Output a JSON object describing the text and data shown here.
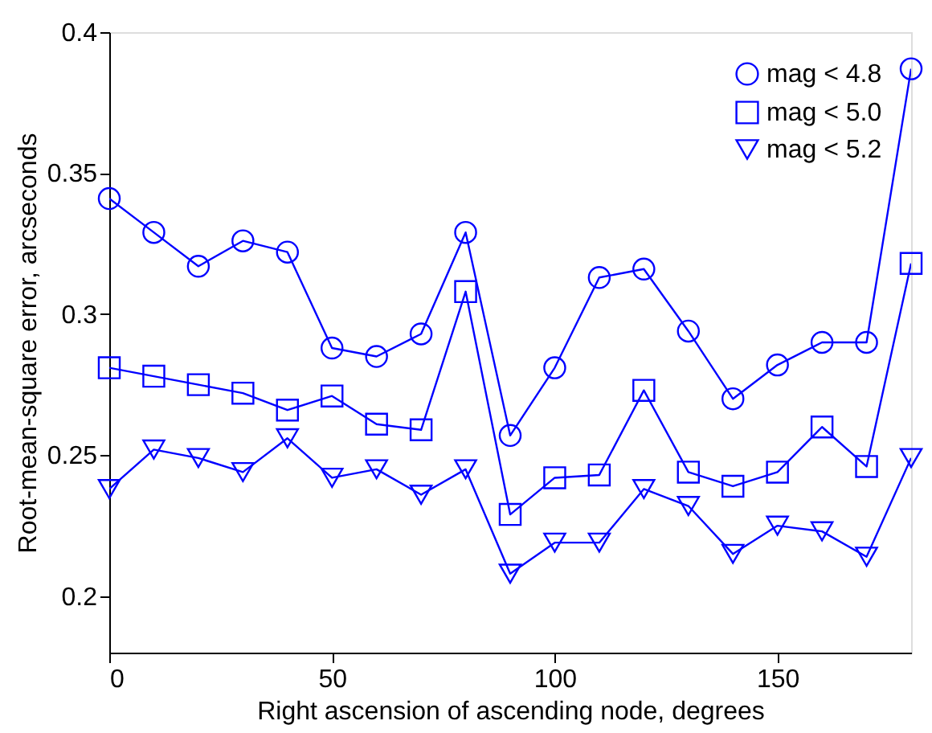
{
  "chart_data": {
    "type": "line",
    "xlabel": "Right ascension of ascending node, degrees",
    "ylabel": "Root-mean-square error, arcseconds",
    "x": [
      0,
      10,
      20,
      30,
      40,
      50,
      60,
      70,
      80,
      90,
      100,
      110,
      120,
      130,
      140,
      150,
      160,
      170,
      180
    ],
    "xlim": [
      0,
      180
    ],
    "xticks": [
      0,
      50,
      100,
      150
    ],
    "ylim": [
      0.18,
      0.4
    ],
    "yticks": [
      0.2,
      0.25,
      0.3,
      0.35,
      0.4
    ],
    "grid": false,
    "legend": "top right",
    "line_style": "solid",
    "series": [
      {
        "name": "mag < 4.8",
        "color": "#0000ff",
        "marker": "circle",
        "values": [
          0.341,
          0.329,
          0.317,
          0.326,
          0.322,
          0.288,
          0.285,
          0.293,
          0.329,
          0.257,
          0.281,
          0.313,
          0.316,
          0.294,
          0.27,
          0.282,
          0.29,
          0.29,
          0.387
        ]
      },
      {
        "name": "mag < 5.0",
        "color": "#0000ff",
        "marker": "square",
        "values": [
          0.281,
          0.278,
          0.275,
          0.272,
          0.266,
          0.271,
          0.261,
          0.259,
          0.308,
          0.229,
          0.242,
          0.243,
          0.273,
          0.244,
          0.239,
          0.244,
          0.26,
          0.246,
          0.318
        ]
      },
      {
        "name": "mag < 5.2",
        "color": "#0000ff",
        "marker": "triangle",
        "values": [
          0.238,
          0.252,
          0.249,
          0.244,
          0.256,
          0.242,
          0.245,
          0.236,
          0.245,
          0.208,
          0.219,
          0.219,
          0.238,
          0.232,
          0.215,
          0.225,
          0.223,
          0.214,
          0.249
        ]
      }
    ]
  }
}
